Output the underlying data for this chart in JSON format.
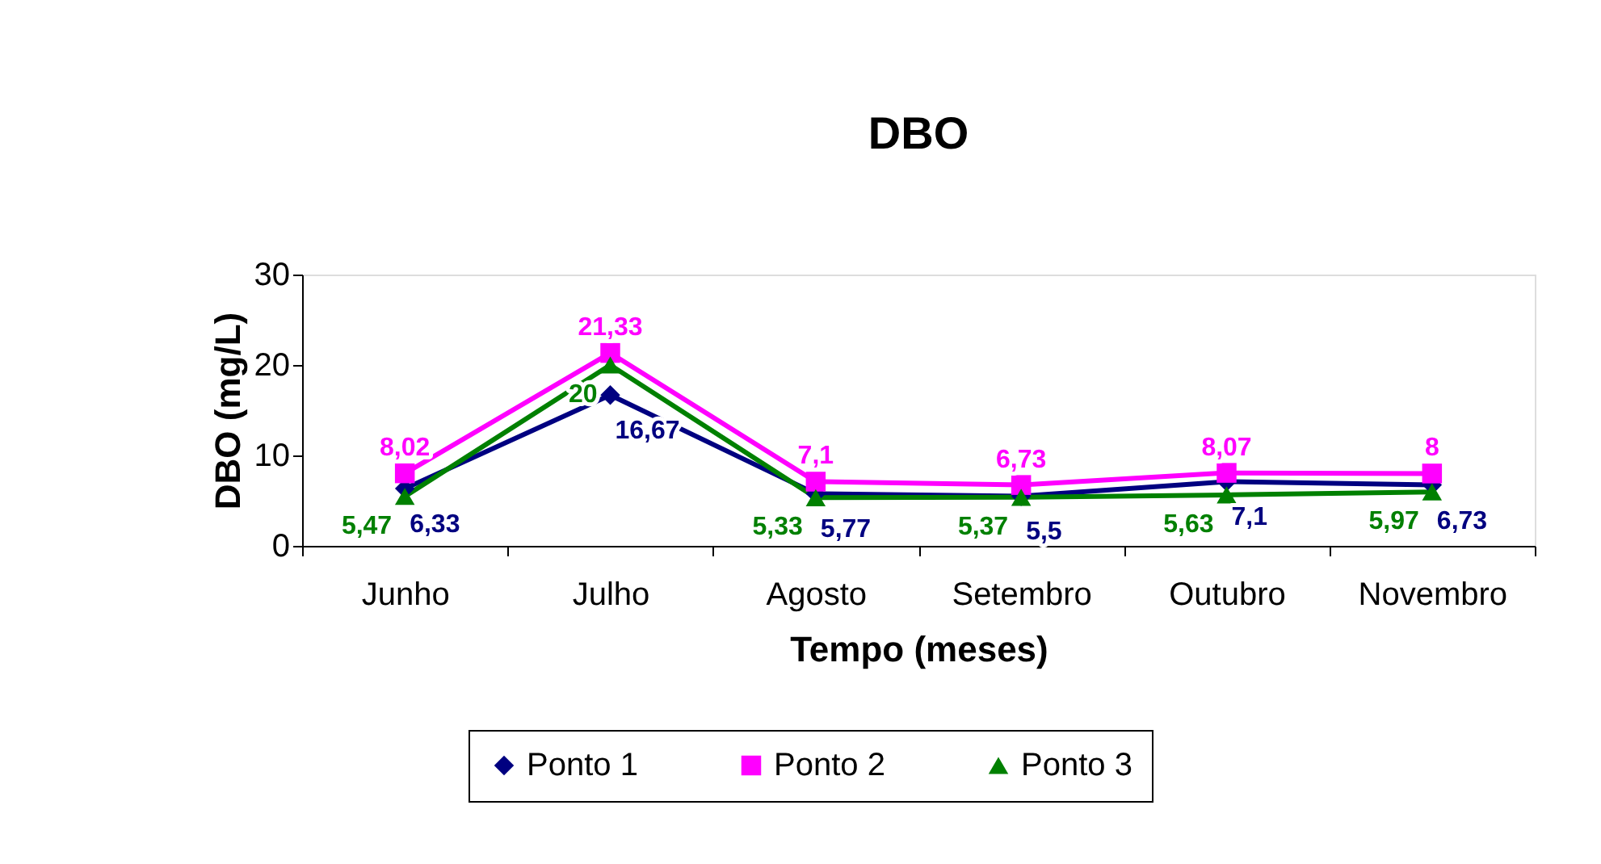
{
  "chart_data": {
    "type": "line",
    "title": "DBO",
    "xlabel": "Tempo (meses)",
    "ylabel": "DBO (mg/L)",
    "categories": [
      "Junho",
      "Julho",
      "Agosto",
      "Setembro",
      "Outubro",
      "Novembro"
    ],
    "series": [
      {
        "name": "Ponto 1",
        "color": "#000080",
        "marker": "diamond",
        "values": [
          6.33,
          16.67,
          5.77,
          5.5,
          7.1,
          6.73
        ],
        "value_labels": [
          "6,33",
          "16,67",
          "5,77",
          "5,5",
          "7,1",
          "6,73"
        ]
      },
      {
        "name": "Ponto 2",
        "color": "#ff00ff",
        "marker": "square",
        "values": [
          8.02,
          21.33,
          7.1,
          6.73,
          8.07,
          8
        ],
        "value_labels": [
          "8,02",
          "21,33",
          "7,1",
          "6,73",
          "8,07",
          "8"
        ]
      },
      {
        "name": "Ponto 3",
        "color": "#008000",
        "marker": "triangle",
        "values": [
          5.47,
          20,
          5.33,
          5.37,
          5.63,
          5.97
        ],
        "value_labels": [
          "5,47",
          "20",
          "5,33",
          "5,37",
          "5,63",
          "5,97"
        ]
      }
    ],
    "ylim": [
      0,
      30
    ],
    "yticks": [
      0,
      10,
      20,
      30
    ],
    "grid": false,
    "legend": "bottom",
    "line_style": "solid"
  }
}
